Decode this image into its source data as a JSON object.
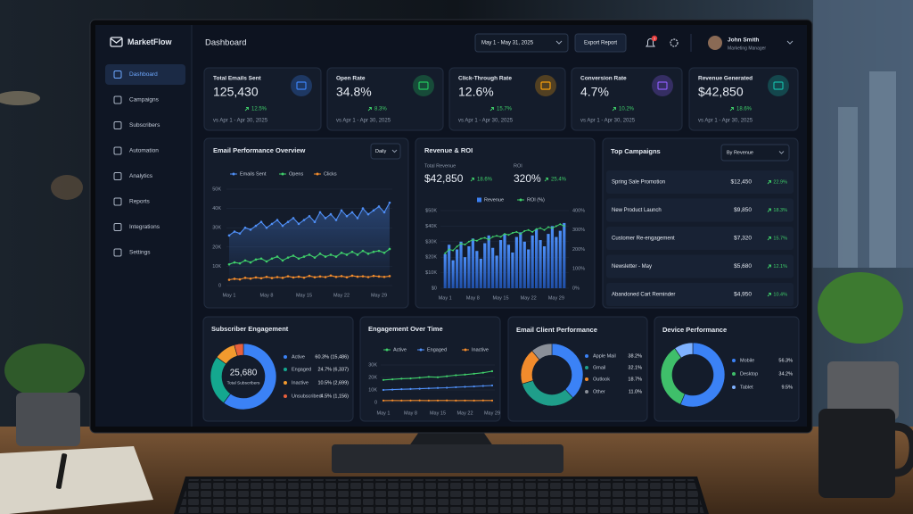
{
  "app": {
    "brand": "MarketFlow",
    "page_title": "Dashboard",
    "date_range": "May 1 - May 31, 2025",
    "export": "Export Report",
    "notifications": "3",
    "user_name": "John Smith",
    "user_role": "Marketing Manager"
  },
  "nav": [
    "Dashboard",
    "Campaigns",
    "Subscribers",
    "Automation",
    "Analytics",
    "Reports",
    "Integrations",
    "Settings"
  ],
  "kpis": [
    {
      "label": "Total Emails Sent",
      "value": "125,430",
      "change": "12.5%",
      "compare": "vs Apr 1 - Apr 30, 2025"
    },
    {
      "label": "Open Rate",
      "value": "34.8%",
      "change": "8.3%",
      "compare": "vs Apr 1 - Apr 30, 2025"
    },
    {
      "label": "Click-Through Rate",
      "value": "12.6%",
      "change": "15.7%",
      "compare": "vs Apr 1 - Apr 30, 2025"
    },
    {
      "label": "Conversion Rate",
      "value": "4.7%",
      "change": "10.2%",
      "compare": "vs Apr 1 - Apr 30, 2025"
    },
    {
      "label": "Revenue Generated",
      "value": "$42,850",
      "change": "18.6%",
      "compare": "vs Apr 1 - Apr 30, 2025"
    }
  ],
  "top_campaigns": {
    "title": "Top Campaigns",
    "sort": "By Revenue",
    "rows": [
      [
        "Spring Sale Promotion",
        "$12,450",
        "22.9%"
      ],
      [
        "New Product Launch",
        "$9,850",
        "18.3%"
      ],
      [
        "Customer Re-engagement",
        "$7,320",
        "15.7%"
      ],
      [
        "Newsletter - May",
        "$5,680",
        "12.1%"
      ],
      [
        "Abandoned Cart Reminder",
        "$4,950",
        "10.4%"
      ]
    ]
  },
  "chart_data": [
    {
      "type": "line",
      "title": "Email Performance Overview",
      "control": "Daily",
      "categories": [
        "May 1",
        null,
        null,
        null,
        null,
        null,
        null,
        "May 8",
        null,
        null,
        null,
        null,
        null,
        null,
        "May 15",
        null,
        null,
        null,
        null,
        null,
        null,
        "May 22",
        null,
        null,
        null,
        null,
        null,
        null,
        "May 29",
        null,
        null
      ],
      "ylim": [
        0,
        50000
      ],
      "yticks": [
        0,
        {
          "value": 10000,
          "label": "10K"
        },
        {
          "value": 20000,
          "label": "20K"
        },
        {
          "value": 30000,
          "label": "30K"
        },
        {
          "value": 40000,
          "label": "40K"
        },
        {
          "value": 50000,
          "label": "50K"
        }
      ],
      "grid": true,
      "series": [
        {
          "name": "Emails Sent",
          "color": "#4f8ff7",
          "values": [
            26000,
            28000,
            27000,
            30000,
            29000,
            31000,
            33000,
            30000,
            32000,
            34000,
            31000,
            33000,
            35000,
            32000,
            34000,
            36000,
            33000,
            38000,
            35000,
            37000,
            34000,
            39000,
            36000,
            38000,
            35000,
            40000,
            37000,
            39000,
            41000,
            38000,
            43000
          ]
        },
        {
          "name": "Opens",
          "color": "#3fcf6a",
          "values": [
            11000,
            12000,
            11500,
            13000,
            12000,
            13500,
            14000,
            12500,
            14000,
            15000,
            13000,
            14500,
            15500,
            14000,
            15000,
            16000,
            14500,
            16500,
            15000,
            16000,
            15000,
            17000,
            16000,
            17500,
            16000,
            18000,
            16500,
            17500,
            18000,
            17000,
            19000
          ]
        },
        {
          "name": "Clicks",
          "color": "#f28b2c",
          "values": [
            3000,
            3500,
            3200,
            4000,
            3600,
            4200,
            3800,
            4500,
            3900,
            4400,
            4000,
            4800,
            4200,
            4600,
            4100,
            5000,
            4300,
            4700,
            4400,
            5200,
            4500,
            4900,
            4300,
            5100,
            4600,
            4800,
            4400,
            5000,
            4700,
            4500,
            4900
          ]
        }
      ]
    },
    {
      "type": "bar",
      "title": "Revenue & ROI",
      "stats": [
        {
          "label": "Total Revenue",
          "value": "$42,850",
          "change": "18.6%"
        },
        {
          "label": "ROI",
          "value": "320%",
          "change": "25.4%"
        }
      ],
      "categories": [
        "May 1",
        null,
        null,
        null,
        null,
        null,
        null,
        "May 8",
        null,
        null,
        null,
        null,
        null,
        null,
        "May 15",
        null,
        null,
        null,
        null,
        null,
        null,
        "May 22",
        null,
        null,
        null,
        null,
        null,
        null,
        "May 29",
        null,
        null
      ],
      "ylim": [
        0,
        50000
      ],
      "yticks": [
        {
          "value": 0,
          "label": "$0"
        },
        {
          "value": 10000,
          "label": "$10K"
        },
        {
          "value": 20000,
          "label": "$20K"
        },
        {
          "value": 30000,
          "label": "$30K"
        },
        {
          "value": 40000,
          "label": "$40K"
        },
        {
          "value": 50000,
          "label": "$50K"
        }
      ],
      "y2lim": [
        0,
        400
      ],
      "y2ticks": [
        {
          "value": 0,
          "label": "0%"
        },
        {
          "value": 100,
          "label": "100%"
        },
        {
          "value": 200,
          "label": "200%"
        },
        {
          "value": 300,
          "label": "300%"
        },
        {
          "value": 400,
          "label": "400%"
        }
      ],
      "grid": true,
      "series": [
        {
          "name": "Revenue",
          "color": "#3b7ff0",
          "values": [
            22000,
            28000,
            18000,
            25000,
            30000,
            20000,
            27000,
            32000,
            24000,
            19000,
            29000,
            34000,
            26000,
            21000,
            31000,
            35000,
            28000,
            23000,
            33000,
            36000,
            30000,
            25000,
            34000,
            38000,
            31000,
            27000,
            35000,
            40000,
            33000,
            37000,
            42000
          ]
        },
        {
          "name": "ROI (%)",
          "color": "#3fcf6a",
          "axis": "y2",
          "values": [
            180,
            200,
            195,
            215,
            230,
            225,
            240,
            250,
            245,
            255,
            260,
            250,
            265,
            270,
            265,
            280,
            275,
            285,
            290,
            280,
            295,
            300,
            290,
            305,
            310,
            300,
            315,
            310,
            320,
            330,
            320
          ]
        }
      ]
    },
    {
      "type": "donut",
      "title": "Subscriber Engagement",
      "center_value": "25,680",
      "center_label": "Total Subscribers",
      "categories": [
        "Active",
        "Engaged",
        "Inactive",
        "Unsubscribed"
      ],
      "values": [
        60.3,
        24.7,
        10.5,
        4.5
      ],
      "value_labels": [
        "60.3% (15,486)",
        "24.7% (6,337)",
        "10.5% (2,699)",
        "4.5% (1,156)"
      ],
      "colors": [
        "#3b82f6",
        "#14a88f",
        "#f29a2e",
        "#e8603c"
      ]
    },
    {
      "type": "line",
      "title": "Engagement Over Time",
      "categories": [
        "May 1",
        null,
        null,
        "May 8",
        null,
        null,
        "May 15",
        null,
        null,
        "May 22",
        null,
        null,
        "May 29"
      ],
      "ylim": [
        0,
        30000
      ],
      "yticks": [
        0,
        {
          "value": 10000,
          "label": "10K"
        },
        {
          "value": 20000,
          "label": "20K"
        },
        {
          "value": 30000,
          "label": "30K"
        }
      ],
      "grid": true,
      "series": [
        {
          "name": "Active",
          "color": "#3fcf6a",
          "values": [
            18000,
            18500,
            19000,
            19200,
            19800,
            20500,
            20200,
            21000,
            21800,
            22300,
            23000,
            23800,
            25000
          ]
        },
        {
          "name": "Engaged",
          "color": "#4f8ff7",
          "values": [
            10000,
            10300,
            10600,
            10800,
            11000,
            11300,
            11600,
            11800,
            12200,
            12500,
            12800,
            13200,
            13600
          ]
        },
        {
          "name": "Inactive",
          "color": "#f28b2c",
          "values": [
            1500,
            1600,
            1500,
            1550,
            1600,
            1500,
            1550,
            1600,
            1500,
            1550,
            1500,
            1600,
            1550
          ]
        }
      ]
    },
    {
      "type": "donut",
      "title": "Email Client Performance",
      "categories": [
        "Apple Mail",
        "Gmail",
        "Outlook",
        "Other"
      ],
      "values": [
        38.2,
        32.1,
        18.7,
        11.0
      ],
      "value_labels": [
        "38.2%",
        "32.1%",
        "18.7%",
        "11.0%"
      ],
      "colors": [
        "#3b82f6",
        "#1f9e8a",
        "#f28b2c",
        "#8a8f98"
      ]
    },
    {
      "type": "donut",
      "title": "Device Performance",
      "categories": [
        "Mobile",
        "Desktop",
        "Tablet"
      ],
      "values": [
        56.3,
        34.2,
        9.5
      ],
      "value_labels": [
        "56.3%",
        "34.2%",
        "9.5%"
      ],
      "colors": [
        "#3b82f6",
        "#3fbf6a",
        "#7fb2ff"
      ]
    }
  ]
}
